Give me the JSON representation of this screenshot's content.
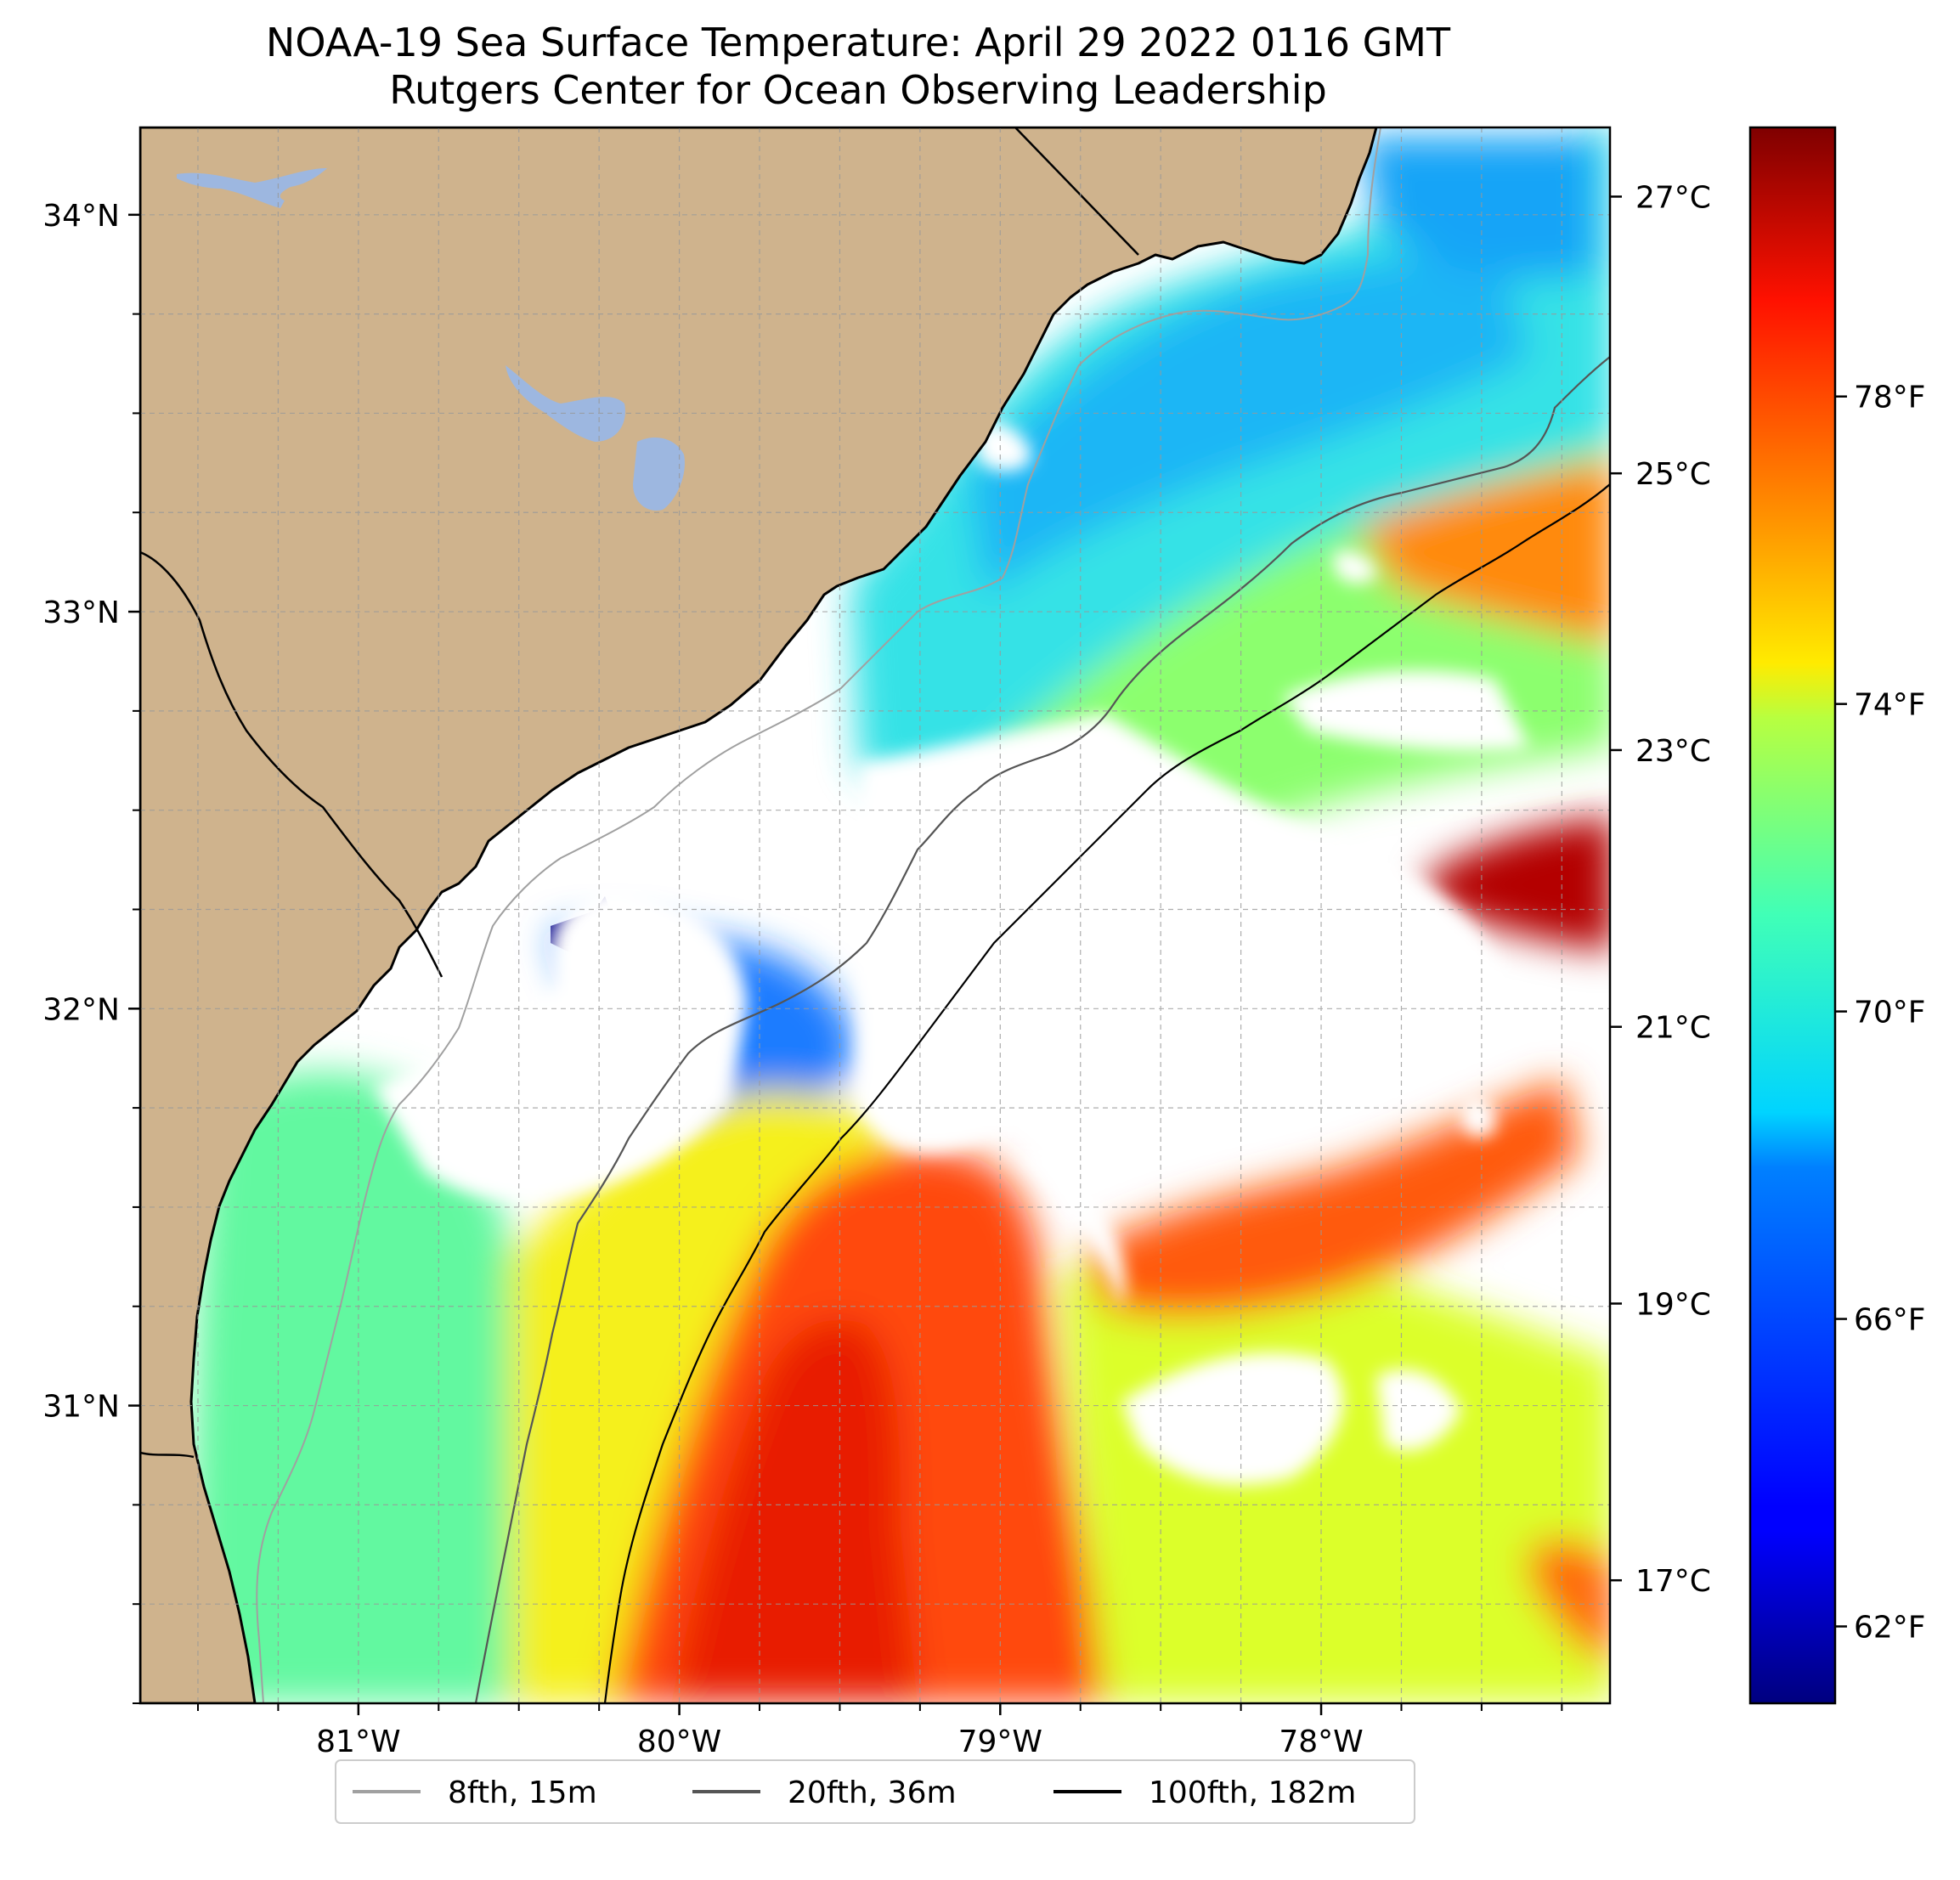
{
  "title": {
    "line1": "NOAA-19 Sea Surface Temperature: April 29 2022 0116 GMT",
    "line2": "Rutgers Center for Ocean Observing Leadership"
  },
  "map": {
    "lon_range": [
      -81.68,
      -77.1
    ],
    "lat_range": [
      30.25,
      34.22
    ],
    "lon_ticks": [
      {
        "value": -81,
        "label": "81°W"
      },
      {
        "value": -80,
        "label": "80°W"
      },
      {
        "value": -79,
        "label": "79°W"
      },
      {
        "value": -78,
        "label": "78°W"
      }
    ],
    "lat_ticks": [
      {
        "value": 34,
        "label": "34°N"
      },
      {
        "value": 33,
        "label": "33°N"
      },
      {
        "value": 32,
        "label": "32°N"
      },
      {
        "value": 31,
        "label": "31°N"
      }
    ],
    "gridlines": true,
    "land_color": "#cfb38d",
    "lake_color": "#9db7e0",
    "no_data_color": "#ffffff"
  },
  "colorbar": {
    "colormap": "jet",
    "range_f": [
      61.0,
      81.5
    ],
    "celsius_ticks": [
      {
        "value": 27,
        "label": "27°C"
      },
      {
        "value": 25,
        "label": "25°C"
      },
      {
        "value": 23,
        "label": "23°C"
      },
      {
        "value": 21,
        "label": "21°C"
      },
      {
        "value": 19,
        "label": "19°C"
      },
      {
        "value": 17,
        "label": "17°C"
      }
    ],
    "fahrenheit_ticks": [
      {
        "value": 78,
        "label": "78°F"
      },
      {
        "value": 74,
        "label": "74°F"
      },
      {
        "value": 70,
        "label": "70°F"
      },
      {
        "value": 66,
        "label": "66°F"
      },
      {
        "value": 62,
        "label": "62°F"
      }
    ]
  },
  "legend": {
    "items": [
      {
        "label": "8fth, 15m",
        "color": "#a0a0a0"
      },
      {
        "label": "20fth, 36m",
        "color": "#555555"
      },
      {
        "label": "100fth, 182m",
        "color": "#000000"
      }
    ]
  }
}
